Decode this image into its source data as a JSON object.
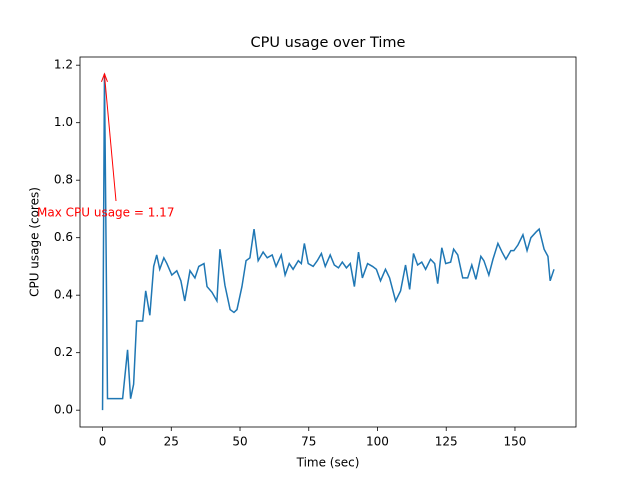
{
  "chart_data": {
    "type": "line",
    "title": "CPU usage over Time",
    "x_label": "Time (sec)",
    "y_label": "CPU usage (cores)",
    "color": "#1f77b4",
    "x": [
      0,
      0.7,
      1.8,
      7.3,
      9.1,
      10.2,
      11.3,
      12.4,
      14.6,
      15.7,
      17.2,
      18.6,
      19.7,
      20.8,
      22.3,
      23.4,
      25.2,
      27,
      28.5,
      29.9,
      31.8,
      33.6,
      35,
      36.9,
      38,
      39.8,
      41.6,
      42.7,
      44.5,
      46.4,
      47.8,
      48.9,
      50.7,
      52.2,
      53.6,
      55.1,
      56.6,
      58.4,
      59.9,
      61.7,
      63.1,
      65,
      66.4,
      67.9,
      69.3,
      71.2,
      72.3,
      73.4,
      74.8,
      76.6,
      78.1,
      79.6,
      81,
      82.8,
      84.3,
      85.8,
      87.2,
      88.7,
      90.1,
      91.6,
      93.1,
      94.5,
      96.4,
      98.2,
      99.6,
      101.1,
      102.9,
      104.4,
      106.6,
      108.4,
      110.2,
      111.7,
      113.1,
      114.6,
      116.1,
      117.5,
      119.3,
      120.8,
      121.9,
      123.4,
      124.8,
      126.6,
      127.7,
      129.2,
      131,
      132.8,
      134.3,
      135.8,
      137.6,
      138.7,
      140.5,
      142,
      143.8,
      145.3,
      146.7,
      148.5,
      149.6,
      151.1,
      152.9,
      154.4,
      155.8,
      157.7,
      158.8,
      160.6,
      162,
      162.8,
      164.2
    ],
    "values": [
      0,
      1.17,
      0.04,
      0.04,
      0.21,
      0.04,
      0.09,
      0.31,
      0.31,
      0.415,
      0.33,
      0.5,
      0.54,
      0.49,
      0.53,
      0.51,
      0.47,
      0.485,
      0.45,
      0.38,
      0.485,
      0.46,
      0.5,
      0.51,
      0.43,
      0.41,
      0.38,
      0.56,
      0.435,
      0.35,
      0.34,
      0.35,
      0.43,
      0.52,
      0.53,
      0.63,
      0.52,
      0.55,
      0.53,
      0.54,
      0.5,
      0.54,
      0.47,
      0.51,
      0.49,
      0.52,
      0.51,
      0.58,
      0.51,
      0.5,
      0.52,
      0.545,
      0.5,
      0.54,
      0.505,
      0.495,
      0.515,
      0.495,
      0.51,
      0.43,
      0.55,
      0.46,
      0.51,
      0.5,
      0.49,
      0.45,
      0.49,
      0.46,
      0.38,
      0.415,
      0.505,
      0.42,
      0.545,
      0.505,
      0.515,
      0.49,
      0.525,
      0.51,
      0.44,
      0.565,
      0.51,
      0.515,
      0.56,
      0.54,
      0.46,
      0.46,
      0.505,
      0.455,
      0.535,
      0.52,
      0.47,
      0.525,
      0.58,
      0.55,
      0.525,
      0.555,
      0.555,
      0.575,
      0.61,
      0.555,
      0.6,
      0.62,
      0.63,
      0.56,
      0.535,
      0.45,
      0.49
    ],
    "xlim": [
      -8.2,
      172.2
    ],
    "ylim": [
      -0.0585,
      1.2285
    ],
    "xticks": [
      0,
      25,
      50,
      75,
      100,
      125,
      150
    ],
    "yticks": [
      {
        "value": 0,
        "label": "0.0"
      },
      0.2,
      0.4,
      0.6,
      0.8,
      {
        "value": 1,
        "label": "1.0"
      },
      1.2
    ],
    "annotation": {
      "text": "Max CPU usage = 1.17",
      "x": 0.7,
      "y": 1.17,
      "color": "red"
    }
  }
}
